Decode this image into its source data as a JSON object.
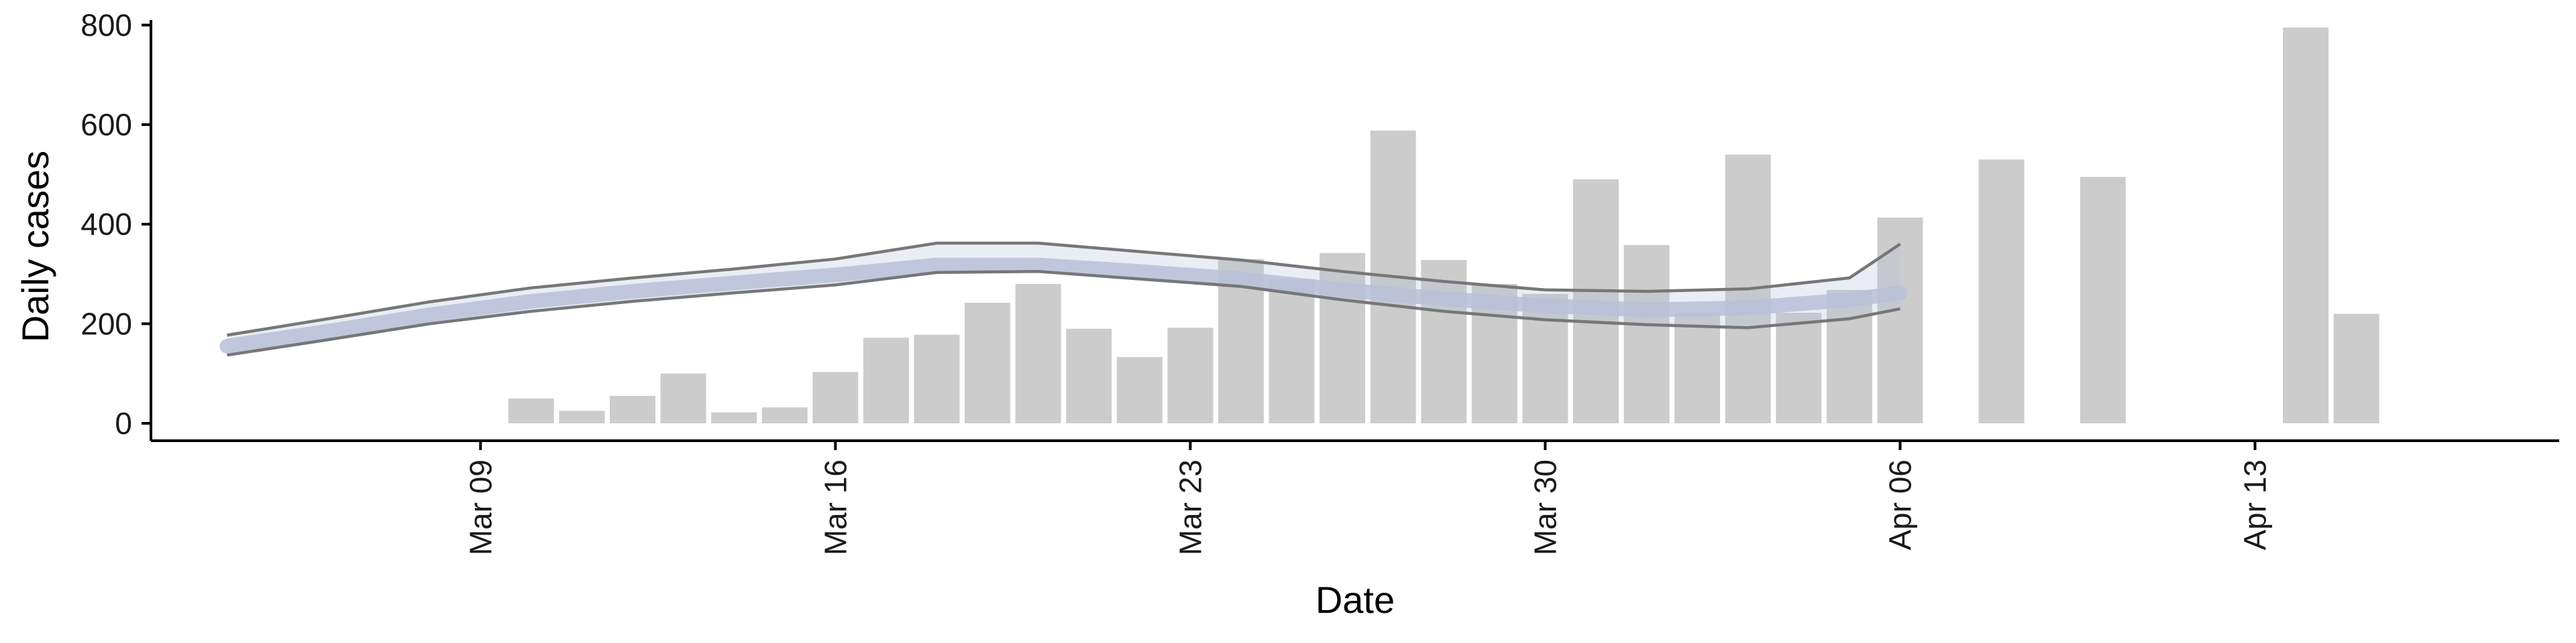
{
  "chart_data": {
    "type": "bar",
    "xlabel": "Date",
    "ylabel": "Daily cases",
    "ylim": [
      -35,
      810
    ],
    "xlim": [
      "2020-03-02T12:00",
      "2020-04-19T00:00"
    ],
    "grid": false,
    "legend": "none",
    "x_ticks": [
      {
        "date": "2020-03-09",
        "label": "Mar 09"
      },
      {
        "date": "2020-03-16",
        "label": "Mar 16"
      },
      {
        "date": "2020-03-23",
        "label": "Mar 23"
      },
      {
        "date": "2020-03-30",
        "label": "Mar 30"
      },
      {
        "date": "2020-04-06",
        "label": "Apr 06"
      },
      {
        "date": "2020-04-13",
        "label": "Apr 13"
      }
    ],
    "y_ticks": [
      0,
      200,
      400,
      600,
      800
    ],
    "series": [
      {
        "name": "",
        "type": "bar",
        "color": "#cccccc",
        "x": [
          "2020-03-10",
          "2020-03-11",
          "2020-03-12",
          "2020-03-13",
          "2020-03-14",
          "2020-03-15",
          "2020-03-16",
          "2020-03-17",
          "2020-03-18",
          "2020-03-19",
          "2020-03-20",
          "2020-03-21",
          "2020-03-22",
          "2020-03-23",
          "2020-03-24",
          "2020-03-25",
          "2020-03-26",
          "2020-03-27",
          "2020-03-28",
          "2020-03-29",
          "2020-03-30",
          "2020-03-31",
          "2020-04-01",
          "2020-04-02",
          "2020-04-03",
          "2020-04-04",
          "2020-04-05",
          "2020-04-06",
          "2020-04-08",
          "2020-04-10",
          "2020-04-14",
          "2020-04-15"
        ],
        "values": [
          50,
          25,
          55,
          100,
          22,
          32,
          103,
          172,
          178,
          242,
          280,
          190,
          133,
          192,
          330,
          290,
          342,
          588,
          328,
          280,
          260,
          490,
          358,
          222,
          540,
          222,
          268,
          413,
          530,
          495,
          795,
          220
        ]
      },
      {
        "name": "",
        "type": "band",
        "color": "#b8c0d8",
        "x": [
          "2020-03-04",
          "2020-03-06",
          "2020-03-08",
          "2020-03-10",
          "2020-03-12",
          "2020-03-14",
          "2020-03-16",
          "2020-03-18",
          "2020-03-20",
          "2020-03-22",
          "2020-03-24",
          "2020-03-26",
          "2020-03-28",
          "2020-03-30",
          "2020-04-01",
          "2020-04-03",
          "2020-04-05",
          "2020-04-06"
        ],
        "mid": [
          155,
          185,
          218,
          245,
          265,
          282,
          298,
          318,
          318,
          305,
          290,
          268,
          250,
          236,
          228,
          232,
          248,
          262
        ],
        "lower": [
          137,
          168,
          200,
          225,
          245,
          262,
          278,
          303,
          305,
          290,
          275,
          248,
          225,
          208,
          198,
          192,
          210,
          230
        ],
        "upper": [
          177,
          210,
          244,
          272,
          292,
          310,
          330,
          362,
          362,
          345,
          328,
          305,
          285,
          268,
          265,
          270,
          292,
          360
        ]
      }
    ]
  }
}
